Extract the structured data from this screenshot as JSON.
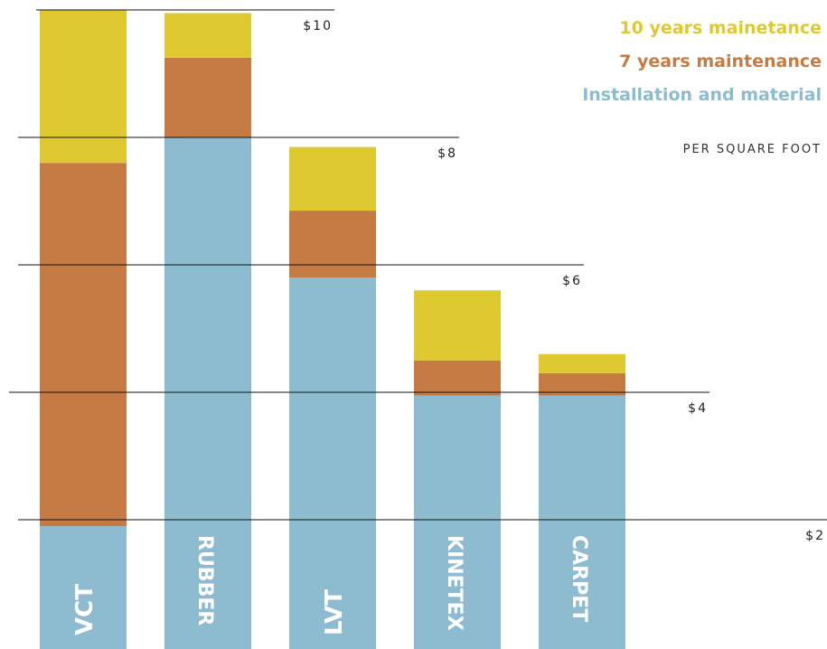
{
  "chart_data": {
    "type": "bar",
    "stacked": true,
    "categories": [
      "VCT",
      "RUBBER",
      "LVT",
      "KINETEX",
      "CARPET"
    ],
    "series": [
      {
        "name": "Installation and material",
        "values": [
          1.9,
          8.0,
          5.8,
          3.95,
          3.95
        ],
        "color": "#8dbbcf"
      },
      {
        "name": "7 years maintenance",
        "values": [
          5.7,
          1.25,
          1.05,
          0.55,
          0.35
        ],
        "color": "#c67b45"
      },
      {
        "name": "10 years mainetance",
        "values": [
          2.4,
          0.7,
          1.0,
          1.1,
          0.3
        ],
        "color": "#dfc930"
      }
    ],
    "y_ticks": [
      2,
      4,
      6,
      8,
      10
    ],
    "y_tick_labels": [
      "$2",
      "$4",
      "$6",
      "$8",
      "$10"
    ],
    "ylim": [
      0.0,
      10.2
    ],
    "grid": true,
    "legend_position": "top-right",
    "unit_note": "PER SQUARE FOOT"
  }
}
